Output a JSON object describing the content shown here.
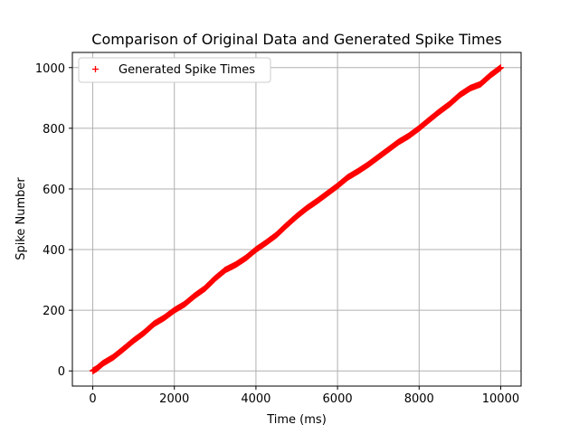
{
  "chart_data": {
    "type": "scatter",
    "title": "Comparison of Original Data and Generated Spike Times",
    "xlabel": "Time (ms)",
    "ylabel": "Spike Number",
    "xlim": [
      -500,
      10500
    ],
    "ylim": [
      -50,
      1050
    ],
    "xticks": [
      0,
      2000,
      4000,
      6000,
      8000,
      10000
    ],
    "xtick_labels": [
      "0",
      "2000",
      "4000",
      "6000",
      "8000",
      "10000"
    ],
    "yticks": [
      0,
      200,
      400,
      600,
      800,
      1000
    ],
    "ytick_labels": [
      "0",
      "200",
      "400",
      "600",
      "800",
      "1000"
    ],
    "grid": true,
    "legend_position": "top-left",
    "series": [
      {
        "name": "Generated Spike Times",
        "marker": "+",
        "color": "#ff0000",
        "x": [
          0,
          100,
          250,
          500,
          750,
          1000,
          1250,
          1500,
          1750,
          2000,
          2250,
          2500,
          2750,
          3000,
          3250,
          3500,
          3750,
          4000,
          4250,
          4500,
          4750,
          5000,
          5250,
          5500,
          5750,
          6000,
          6250,
          6500,
          6750,
          7000,
          7250,
          7500,
          7750,
          8000,
          8250,
          8500,
          8750,
          9000,
          9250,
          9500,
          9750,
          10000
        ],
        "y": [
          0,
          8,
          25,
          45,
          72,
          100,
          125,
          155,
          175,
          200,
          220,
          248,
          272,
          305,
          333,
          350,
          372,
          400,
          423,
          448,
          480,
          510,
          537,
          560,
          585,
          610,
          638,
          658,
          680,
          705,
          730,
          755,
          775,
          800,
          828,
          855,
          880,
          910,
          932,
          945,
          975,
          1000
        ]
      }
    ]
  }
}
